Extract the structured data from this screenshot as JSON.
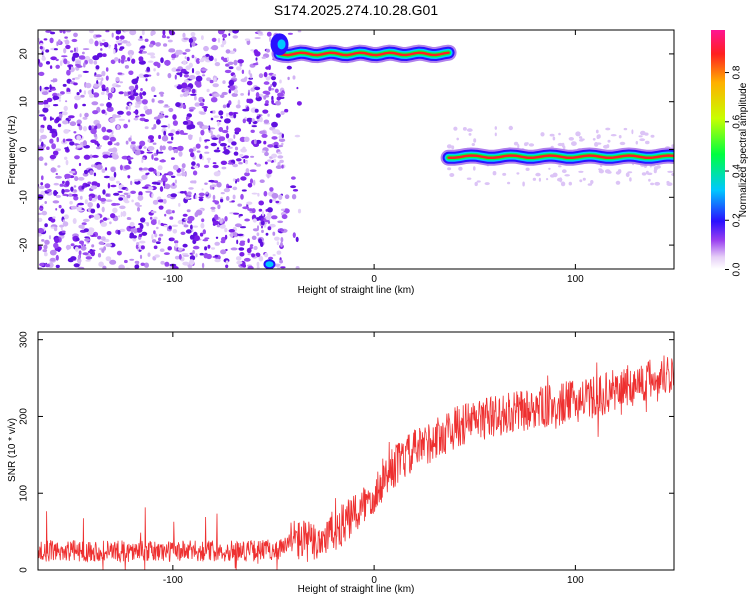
{
  "title": "S174.2025.274.10.28.G01",
  "chart_data": [
    {
      "type": "heatmap",
      "title": "S174.2025.274.10.28.G01",
      "xlabel": "Height of straight line (km)",
      "ylabel": "Frequency (Hz)",
      "xlim": [
        -167,
        149
      ],
      "ylim": [
        -25,
        25
      ],
      "x_ticks": [
        -100,
        0,
        100
      ],
      "y_ticks": [
        -20,
        -10,
        0,
        10,
        20
      ],
      "colorbar": {
        "label": "Normalized spectral amplitude",
        "range": [
          0,
          1
        ],
        "ticks": [
          "0.0",
          "0.2",
          "0.4",
          "0.6",
          "0.8"
        ]
      },
      "ridges": [
        {
          "name": "upper ridge",
          "x_start": -47,
          "x_end": 37,
          "frequency": 20
        },
        {
          "name": "lower ridge",
          "x_start": 37,
          "x_end": 149,
          "frequency": -1.5
        }
      ],
      "noise_region": {
        "x_start": -167,
        "x_end": -37
      }
    },
    {
      "type": "line",
      "xlabel": "Height of straight line (km)",
      "ylabel": "SNR (10 * v/v)",
      "xlim": [
        -167,
        149
      ],
      "ylim": [
        0,
        310
      ],
      "x_ticks": [
        -100,
        0,
        100
      ],
      "y_ticks": [
        0,
        100,
        200,
        300
      ],
      "series": [
        {
          "name": "SNR",
          "color": "#ee3030",
          "x": [
            -167,
            -140,
            -110,
            -80,
            -60,
            -45,
            -40,
            -35,
            -30,
            -20,
            -10,
            0,
            5,
            10,
            15,
            20,
            30,
            40,
            50,
            60,
            70,
            80,
            90,
            100,
            110,
            120,
            130,
            140,
            149
          ],
          "y": [
            25,
            25,
            24,
            25,
            25,
            28,
            40,
            38,
            35,
            50,
            70,
            100,
            120,
            135,
            145,
            155,
            170,
            185,
            195,
            200,
            205,
            210,
            215,
            220,
            225,
            235,
            242,
            250,
            260
          ]
        }
      ]
    }
  ]
}
